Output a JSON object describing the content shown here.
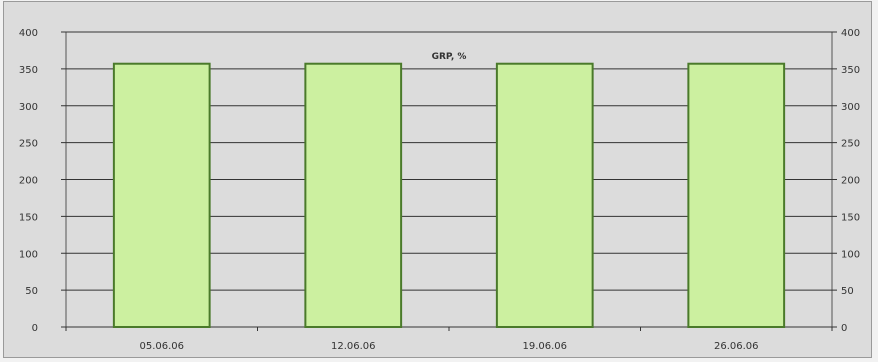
{
  "chart_data": {
    "type": "bar",
    "title": "GRP, %",
    "categories": [
      "05.06.06",
      "12.06.06",
      "19.06.06",
      "26.06.06"
    ],
    "values": [
      357,
      357,
      357,
      357
    ],
    "ylim": [
      0,
      400
    ],
    "y_ticks_left": [
      "400",
      "350",
      "300",
      "250",
      "200",
      "150",
      "100",
      "50",
      "0"
    ],
    "y_ticks_right": [
      "400",
      "350",
      "300",
      "250",
      "200",
      "150",
      "100",
      "50",
      "0"
    ],
    "grid": true,
    "bar_fill": "#ccf0a0",
    "bar_stroke": "#4a7a2a",
    "plot_background": "#dcdcdc",
    "grid_color": "#333333"
  }
}
